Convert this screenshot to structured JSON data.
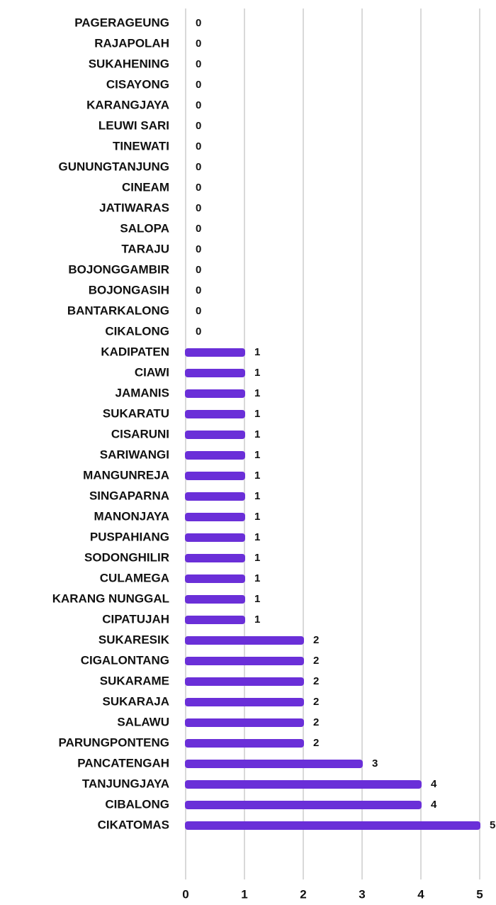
{
  "chart_data": {
    "type": "barh",
    "categories": [
      "PAGERAGEUNG",
      "RAJAPOLAH",
      "SUKAHENING",
      "CISAYONG",
      "KARANGJAYA",
      "LEUWI SARI",
      "TINEWATI",
      "GUNUNGTANJUNG",
      "CINEAM",
      "JATIWARAS",
      "SALOPA",
      "TARAJU",
      "BOJONGGAMBIR",
      "BOJONGASIH",
      "BANTARKALONG",
      "CIKALONG",
      "KADIPATEN",
      "CIAWI",
      "JAMANIS",
      "SUKARATU",
      "CISARUNI",
      "SARIWANGI",
      "MANGUNREJA",
      "SINGAPARNA",
      "MANONJAYA",
      "PUSPAHIANG",
      "SODONGHILIR",
      "CULAMEGA",
      "KARANG NUNGGAL",
      "CIPATUJAH",
      "SUKARESIK",
      "CIGALONTANG",
      "SUKARAME",
      "SUKARAJA",
      "SALAWU",
      "PARUNGPONTENG",
      "PANCATENGAH",
      "TANJUNGJAYA",
      "CIBALONG",
      "CIKATOMAS"
    ],
    "values": [
      0,
      0,
      0,
      0,
      0,
      0,
      0,
      0,
      0,
      0,
      0,
      0,
      0,
      0,
      0,
      0,
      1,
      1,
      1,
      1,
      1,
      1,
      1,
      1,
      1,
      1,
      1,
      1,
      1,
      1,
      2,
      2,
      2,
      2,
      2,
      2,
      3,
      4,
      4,
      5
    ],
    "color": "#6a2fd8",
    "xlim": [
      0,
      5
    ],
    "xticks": [
      0,
      1,
      2,
      3,
      4,
      5
    ],
    "grid": true
  }
}
